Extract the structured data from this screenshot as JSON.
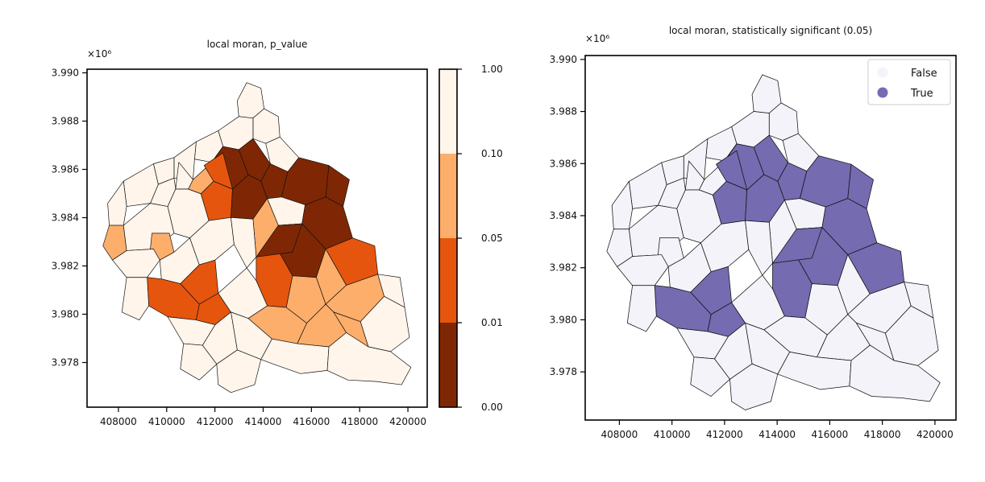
{
  "chart_data": [
    {
      "type": "choropleth",
      "title": "local moran, p_value",
      "offset_text": "×10⁶",
      "xlim": [
        406700,
        420800
      ],
      "ylim": [
        3976150,
        3990150
      ],
      "x_ticks": [
        {
          "v": 408000,
          "label": "408000"
        },
        {
          "v": 410000,
          "label": "410000"
        },
        {
          "v": 412000,
          "label": "412000"
        },
        {
          "v": 414000,
          "label": "414000"
        },
        {
          "v": 416000,
          "label": "416000"
        },
        {
          "v": 418000,
          "label": "418000"
        },
        {
          "v": 420000,
          "label": "420000"
        }
      ],
      "y_ticks": [
        {
          "v": 3978000,
          "label": "3.978"
        },
        {
          "v": 3980000,
          "label": "3.980"
        },
        {
          "v": 3982000,
          "label": "3.982"
        },
        {
          "v": 3984000,
          "label": "3.984"
        },
        {
          "v": 3986000,
          "label": "3.986"
        },
        {
          "v": 3988000,
          "label": "3.988"
        },
        {
          "v": 3990000,
          "label": "3.990"
        }
      ],
      "colorbar": {
        "bins": [
          {
            "from": "0.00",
            "to": "0.01",
            "color": "#7f2704"
          },
          {
            "from": "0.01",
            "to": "0.05",
            "color": "#e6550d"
          },
          {
            "from": "0.05",
            "to": "0.10",
            "color": "#fdae6b"
          },
          {
            "from": "0.10",
            "to": "1.00",
            "color": "#fff5eb"
          }
        ],
        "tick_labels": [
          "0.00",
          "0.01",
          "0.05",
          "0.10",
          "1.00"
        ]
      }
    },
    {
      "type": "choropleth",
      "title": "local moran, statistically significant (0.05)",
      "offset_text": "×10⁶",
      "xlim": [
        406700,
        420800
      ],
      "ylim": [
        3976150,
        3990150
      ],
      "x_ticks": [
        {
          "v": 408000,
          "label": "408000"
        },
        {
          "v": 410000,
          "label": "410000"
        },
        {
          "v": 412000,
          "label": "412000"
        },
        {
          "v": 414000,
          "label": "414000"
        },
        {
          "v": 416000,
          "label": "416000"
        },
        {
          "v": 418000,
          "label": "418000"
        },
        {
          "v": 420000,
          "label": "420000"
        }
      ],
      "y_ticks": [
        {
          "v": 3978000,
          "label": "3.978"
        },
        {
          "v": 3980000,
          "label": "3.980"
        },
        {
          "v": 3982000,
          "label": "3.982"
        },
        {
          "v": 3984000,
          "label": "3.984"
        },
        {
          "v": 3986000,
          "label": "3.986"
        },
        {
          "v": 3988000,
          "label": "3.988"
        },
        {
          "v": 3990000,
          "label": "3.990"
        }
      ],
      "legend": {
        "placement": "top-right",
        "entries": [
          {
            "label": "False",
            "color": "#f4f3fa"
          },
          {
            "label": "True",
            "color": "#756bb1"
          }
        ]
      }
    }
  ]
}
